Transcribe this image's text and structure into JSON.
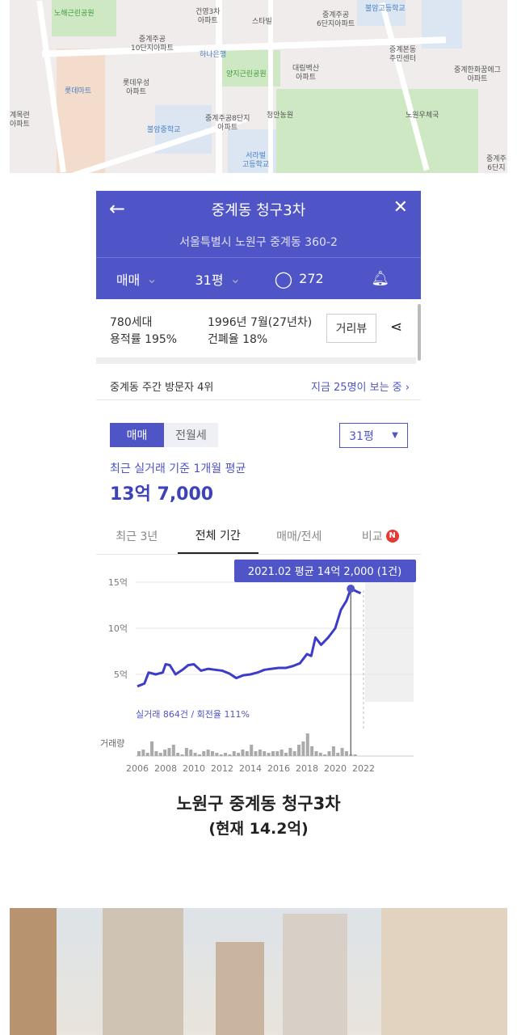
{
  "map": {
    "labels": [
      {
        "text": "노해근린공원",
        "cls": "g"
      },
      {
        "text": "건영3차\n아파트",
        "cls": ""
      },
      {
        "text": "스타빌",
        "cls": ""
      },
      {
        "text": "중계주공\n6단지아파트",
        "cls": ""
      },
      {
        "text": "불암고등학교",
        "cls": "b"
      },
      {
        "text": "중계주공\n10단지아파트",
        "cls": ""
      },
      {
        "text": "하나은행",
        "cls": "b"
      },
      {
        "text": "양지근린공원",
        "cls": "g"
      },
      {
        "text": "대림벽산\n아파트",
        "cls": ""
      },
      {
        "text": "중계본동\n주민센터",
        "cls": ""
      },
      {
        "text": "중계한화꿈에그\n아파트",
        "cls": ""
      },
      {
        "text": "롯데마트",
        "cls": "b"
      },
      {
        "text": "롯데우성\n아파트",
        "cls": ""
      },
      {
        "text": "계목련\n아파트",
        "cls": ""
      },
      {
        "text": "중계주공8단지\n아파트",
        "cls": ""
      },
      {
        "text": "청안농원",
        "cls": ""
      },
      {
        "text": "노원우체국",
        "cls": ""
      },
      {
        "text": "불암중학교",
        "cls": "b"
      },
      {
        "text": "서라벌\n고등학교",
        "cls": "b"
      },
      {
        "text": "중계주\n6단지",
        "cls": ""
      }
    ]
  },
  "app": {
    "title": "중계동 청구3차",
    "address": "서울특별시 노원구 중계동 360-2",
    "trade_type": "매매",
    "size": "31평",
    "comments": "272",
    "households": "780세대",
    "floor_area_ratio": "용적률 195%",
    "built": "1996년 7월(27년차)",
    "coverage_ratio": "건폐율 18%",
    "street_view": "거리뷰",
    "ranking": "중계동 주간 방문자 4위",
    "viewing_now": "지금 25명이 보는 중",
    "toggle": [
      "매매",
      "전월세"
    ],
    "size_select": "31평",
    "avg_label": "최근 실거래 기준 1개월 평균",
    "avg_price": "13억 7,000",
    "period_tabs": [
      "최근 3년",
      "전체 기간",
      "매매/전세",
      "비교"
    ],
    "active_tab": 1,
    "new_badge": "N",
    "accent": "#4f55c6"
  },
  "chart_data": {
    "type": "line",
    "tooltip": "2021.02 평균 14억 2,000 (1건)",
    "y_ticks": [
      "5억",
      "10억",
      "15억"
    ],
    "y_tick_values": [
      5,
      10,
      15
    ],
    "ylim": [
      0,
      15
    ],
    "x_ticks": [
      "2006",
      "2008",
      "2010",
      "2012",
      "2014",
      "2016",
      "2018",
      "2020",
      "2022"
    ],
    "xlim": [
      2006,
      2022
    ],
    "grid": true,
    "summary": "실거래 864건 / 회전율 111%",
    "volume_label": "거래량",
    "series": [
      {
        "x": [
          2006,
          2006.5,
          2006.8,
          2007.3,
          2007.8,
          2008.0,
          2008.3,
          2008.7,
          2009.2,
          2009.6,
          2010.0,
          2010.5,
          2011.0,
          2011.5,
          2012.0,
          2012.5,
          2013.0,
          2013.5,
          2014.0,
          2014.5,
          2015.0,
          2015.5,
          2016.0,
          2016.5,
          2017.0,
          2017.5,
          2018.0,
          2018.3,
          2018.6,
          2019.0,
          2019.5,
          2020.0,
          2020.4,
          2020.8,
          2021.1,
          2021.5,
          2021.8
        ],
        "y": [
          3.7,
          4.0,
          5.2,
          5.0,
          5.2,
          6.1,
          6.0,
          5.0,
          5.5,
          6.0,
          6.1,
          5.4,
          5.6,
          5.5,
          5.4,
          5.1,
          4.6,
          4.9,
          5.0,
          5.2,
          5.5,
          5.6,
          5.7,
          5.7,
          5.9,
          6.2,
          7.2,
          7.0,
          9.0,
          8.2,
          9.0,
          10.0,
          12.0,
          13.0,
          14.3,
          14.0,
          13.8
        ]
      }
    ],
    "volume": [
      3,
      4,
      2,
      9,
      3,
      2,
      4,
      5,
      7,
      2,
      1,
      5,
      4,
      2,
      1,
      3,
      4,
      3,
      2,
      1,
      2,
      1,
      3,
      2,
      4,
      3,
      7,
      3,
      4,
      3,
      2,
      3,
      3,
      4,
      2,
      5,
      3,
      7,
      9,
      14,
      6,
      3,
      2,
      1,
      3,
      6,
      2,
      5,
      3,
      1,
      1
    ]
  },
  "caption": {
    "line1": "노원구 중계동 청구3차",
    "line2": "(현재 14.2억)"
  }
}
